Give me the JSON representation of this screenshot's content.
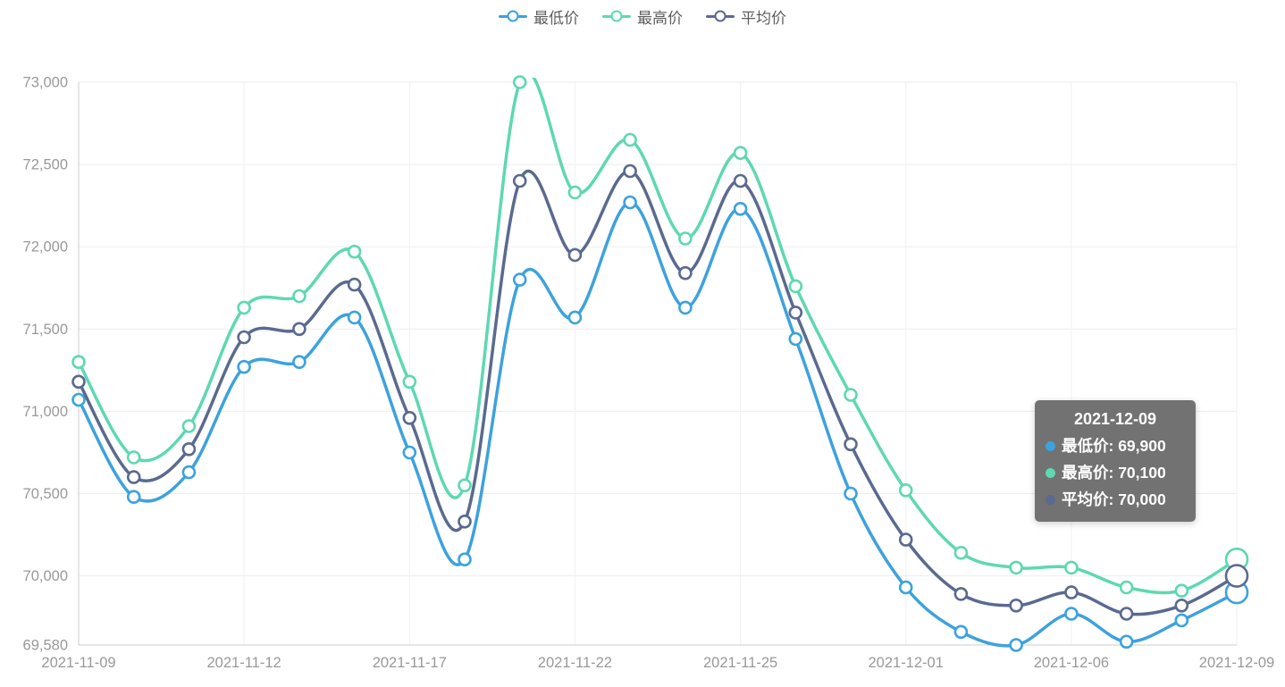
{
  "colors": {
    "axis_label": "#999999",
    "grid_line_h": "#ededed",
    "grid_line_v": "#f1f1f1",
    "axis_line": "#cccccc",
    "legend_text": "#5e5e5e",
    "tooltip_bg": "rgba(103,103,103,0.93)",
    "tooltip_text": "#ffffff",
    "marker_fill": "#ffffff"
  },
  "tooltip": {
    "date": "2021-12-09",
    "rows": [
      {
        "label": "最低价",
        "value": "69,900",
        "text": "最低价: 69,900"
      },
      {
        "label": "最高价",
        "value": "70,100",
        "text": "最高价: 70,100"
      },
      {
        "label": "平均价",
        "value": "70,000",
        "text": "平均价: 70,000"
      }
    ]
  },
  "chart_data": {
    "type": "line",
    "smooth": true,
    "grid": true,
    "legend_position": "top",
    "ylim": [
      69580,
      73000
    ],
    "highlighted_index": 21,
    "highlighted_x": "2021-12-09",
    "x": [
      "2021-11-09",
      "2021-11-10",
      "2021-11-11",
      "2021-11-12",
      "2021-11-15",
      "2021-11-16",
      "2021-11-17",
      "2021-11-18",
      "2021-11-19",
      "2021-11-22",
      "2021-11-23",
      "2021-11-24",
      "2021-11-25",
      "2021-11-29",
      "2021-11-30",
      "2021-12-01",
      "2021-12-02",
      "2021-12-03",
      "2021-12-06",
      "2021-12-07",
      "2021-12-08",
      "2021-12-09"
    ],
    "x_tick_labels": [
      {
        "index": 0,
        "label": "2021-11-09"
      },
      {
        "index": 3,
        "label": "2021-11-12"
      },
      {
        "index": 6,
        "label": "2021-11-17"
      },
      {
        "index": 9,
        "label": "2021-11-22"
      },
      {
        "index": 12,
        "label": "2021-11-25"
      },
      {
        "index": 15,
        "label": "2021-12-01"
      },
      {
        "index": 18,
        "label": "2021-12-06"
      },
      {
        "index": 21,
        "label": "2021-12-09"
      }
    ],
    "y_ticks": [
      {
        "value": 73000,
        "label": "73,000"
      },
      {
        "value": 72500,
        "label": "72,500"
      },
      {
        "value": 72000,
        "label": "72,000"
      },
      {
        "value": 71500,
        "label": "71,500"
      },
      {
        "value": 71000,
        "label": "71,000"
      },
      {
        "value": 70500,
        "label": "70,500"
      },
      {
        "value": 70000,
        "label": "70,000"
      },
      {
        "value": 69580,
        "label": "69,580"
      }
    ],
    "series": [
      {
        "name": "最低价",
        "key": "min-price",
        "color": "#3da2dd",
        "values": [
          71070,
          70480,
          70630,
          71270,
          71300,
          71570,
          70750,
          70100,
          71800,
          71570,
          72270,
          71630,
          72230,
          71440,
          70500,
          69930,
          69660,
          69580,
          69770,
          69600,
          69730,
          69900
        ]
      },
      {
        "name": "最高价",
        "key": "max-price",
        "color": "#5ed8b2",
        "values": [
          71300,
          70720,
          70910,
          71630,
          71700,
          71970,
          71180,
          70550,
          73000,
          72330,
          72650,
          72050,
          72570,
          71760,
          71100,
          70520,
          70140,
          70050,
          70050,
          69930,
          69910,
          70100
        ]
      },
      {
        "name": "平均价",
        "key": "avg-price",
        "color": "#5a6a8f",
        "values": [
          71180,
          70600,
          70770,
          71450,
          71500,
          71770,
          70960,
          70330,
          72400,
          71950,
          72460,
          71840,
          72400,
          71600,
          70800,
          70220,
          69890,
          69820,
          69900,
          69770,
          69820,
          70000
        ]
      }
    ]
  }
}
